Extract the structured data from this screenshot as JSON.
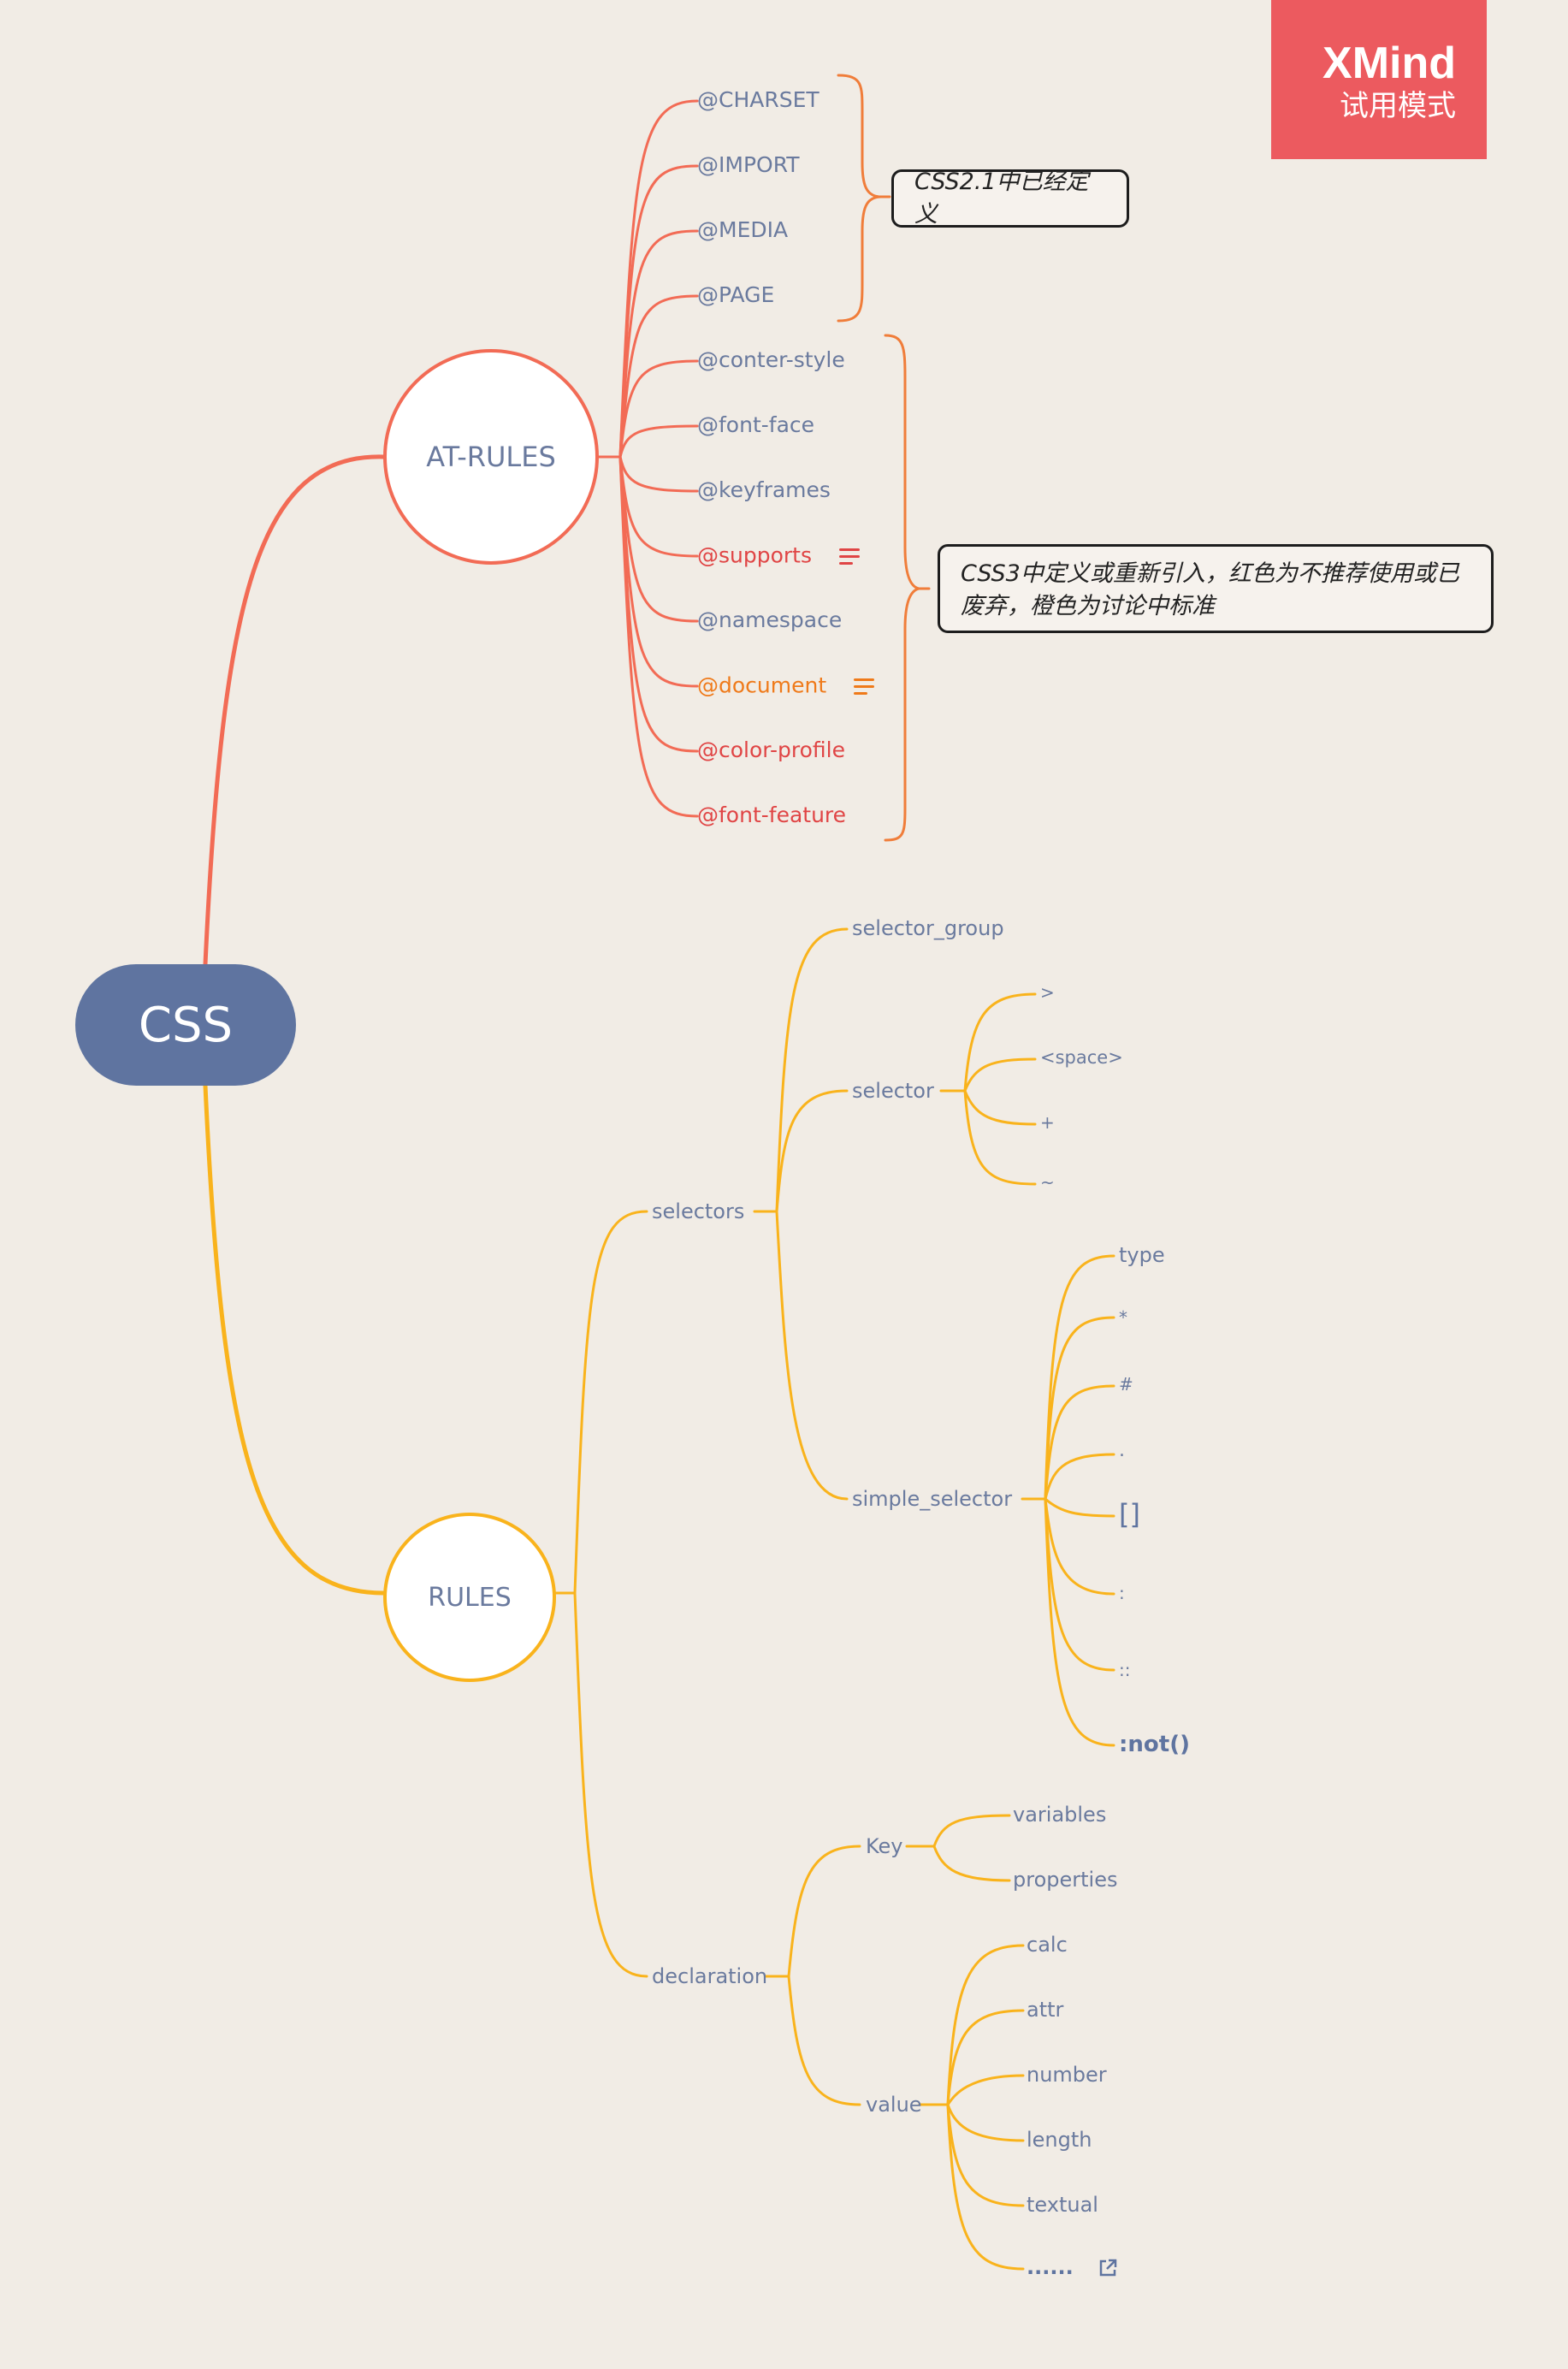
{
  "root": {
    "label": "CSS"
  },
  "badge": {
    "brand": "XMind",
    "mode": "试用模式"
  },
  "at_rules": {
    "label": "AT-RULES",
    "items": [
      {
        "label": "@CHARSET",
        "status": "normal"
      },
      {
        "label": "@IMPORT",
        "status": "normal"
      },
      {
        "label": "@MEDIA",
        "status": "normal"
      },
      {
        "label": "@PAGE",
        "status": "normal"
      },
      {
        "label": "@conter-style",
        "status": "normal"
      },
      {
        "label": "@font-face",
        "status": "normal"
      },
      {
        "label": "@keyframes",
        "status": "normal"
      },
      {
        "label": "@supports",
        "status": "deprecated",
        "has_notes": true
      },
      {
        "label": "@namespace",
        "status": "normal"
      },
      {
        "label": "@document",
        "status": "discussion",
        "has_notes": true
      },
      {
        "label": "@color-profile",
        "status": "deprecated"
      },
      {
        "label": "@font-feature",
        "status": "deprecated"
      }
    ],
    "summary_css21": "CSS2.1中已经定义",
    "summary_css3_line1": "CSS3中定义或重新引入，红色为不推荐使用或已",
    "summary_css3_line2": "废弃，橙色为讨论中标准"
  },
  "rules": {
    "label": "RULES",
    "selectors": {
      "label": "selectors",
      "selector_group": "selector_group",
      "selector": {
        "label": "selector",
        "combinators": [
          ">",
          "<space>",
          "+",
          "~"
        ]
      },
      "simple_selector": {
        "label": "simple_selector",
        "items": [
          "type",
          "*",
          "#",
          ".",
          "[]",
          ":",
          "::",
          ":not()"
        ]
      }
    },
    "declaration": {
      "label": "declaration",
      "key": {
        "label": "Key",
        "items": [
          "variables",
          "properties"
        ]
      },
      "value": {
        "label": "value",
        "items": [
          "calc",
          "attr",
          "number",
          "length",
          "textual",
          "......"
        ]
      }
    }
  },
  "colors": {
    "at_rules_branch": "#f26b55",
    "rules_branch": "#f9b31c",
    "bracket_orange": "#f07d3a",
    "root_fill": "#5f74a0",
    "background": "#f1ece5",
    "deprecated_text": "#e04545",
    "discussion_text": "#ef7a1a",
    "badge_fill": "#ec5a5f"
  },
  "icons": {
    "notes": "notes-icon",
    "external_link": "external-link-icon"
  }
}
